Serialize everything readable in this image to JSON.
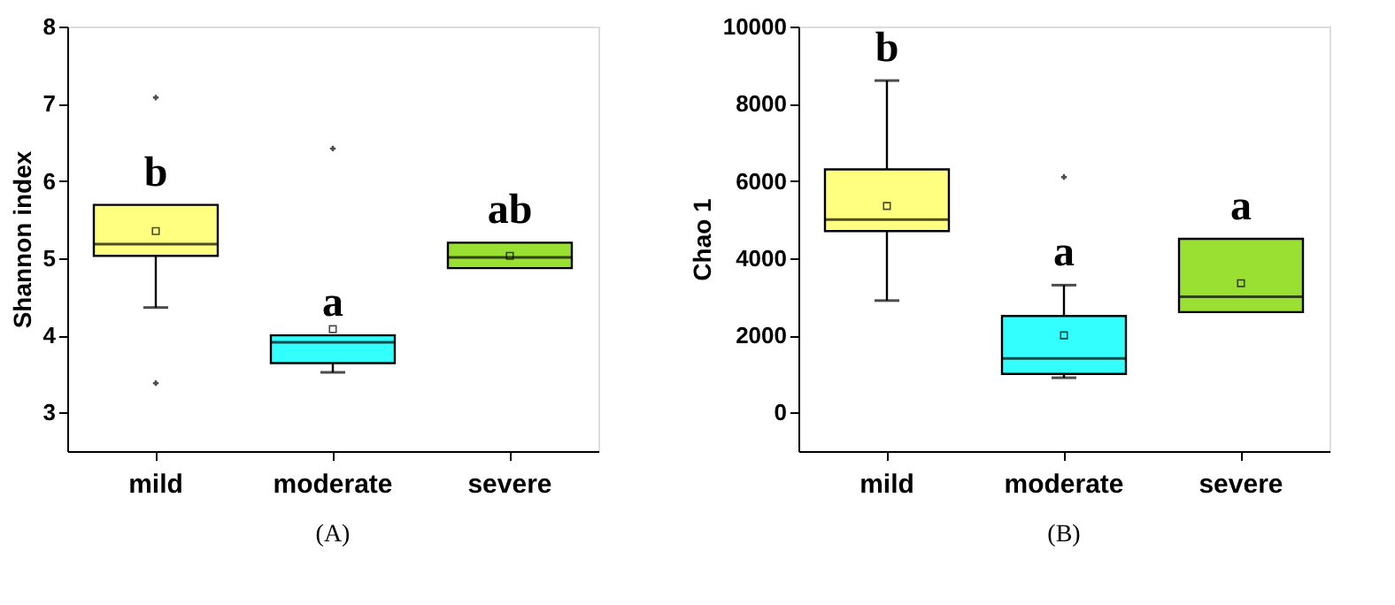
{
  "chart_data": [
    {
      "type": "box",
      "title": "(A)",
      "ylabel": "Shannon index",
      "categories": [
        "mild",
        "moderate",
        "severe"
      ],
      "colors": [
        "#ffff80",
        "#33ffff",
        "#99e033"
      ],
      "ylim": [
        2.5,
        8
      ],
      "yticks": [
        3,
        4,
        5,
        6,
        7,
        8
      ],
      "grid": false,
      "legend": false,
      "boxes": [
        {
          "low": 4.36,
          "q1": 5.03,
          "median": 5.18,
          "q3": 5.69,
          "high": 5.69,
          "mean": 5.35,
          "outliers": [
            7.08,
            3.38
          ]
        },
        {
          "low": 3.52,
          "q1": 3.64,
          "median": 3.91,
          "q3": 4.0,
          "high": 4.0,
          "mean": 4.08,
          "outliers": [
            6.42
          ]
        },
        {
          "low": 4.87,
          "q1": 4.87,
          "median": 5.01,
          "q3": 5.2,
          "high": 5.2,
          "mean": 5.03
        }
      ],
      "annotations": [
        "b",
        "a",
        "ab"
      ]
    },
    {
      "type": "box",
      "title": "(B)",
      "ylabel": "Chao 1",
      "categories": [
        "mild",
        "moderate",
        "severe"
      ],
      "colors": [
        "#ffff80",
        "#33ffff",
        "#99e033"
      ],
      "ylim": [
        -1000,
        10000
      ],
      "yticks": [
        0,
        2000,
        4000,
        6000,
        8000,
        10000
      ],
      "grid": false,
      "legend": false,
      "boxes": [
        {
          "low": 2900,
          "q1": 4700,
          "median": 5000,
          "q3": 6300,
          "high": 8600,
          "mean": 5350
        },
        {
          "low": 900,
          "q1": 1000,
          "median": 1400,
          "q3": 2500,
          "high": 3300,
          "mean": 2000,
          "outliers": [
            6100
          ]
        },
        {
          "low": 2600,
          "q1": 2600,
          "median": 3000,
          "q3": 4500,
          "high": 4500,
          "mean": 3350
        }
      ],
      "annotations": [
        "b",
        "a",
        "a"
      ]
    }
  ]
}
